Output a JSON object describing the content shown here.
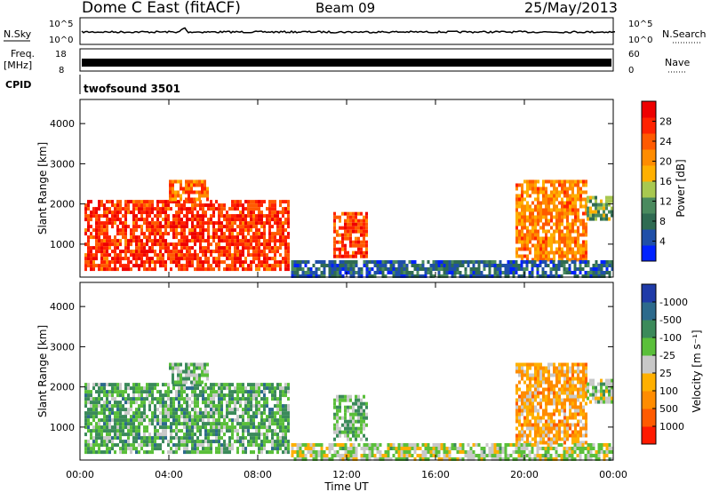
{
  "header": {
    "station": "Dome C East (fitACF)",
    "beam": "Beam 09",
    "date": "25/May/2013"
  },
  "panels": {
    "nsky_label": "N.Sky",
    "nsearch_label": "N.Search",
    "nsky_ticks": [
      "10^5",
      "10^0"
    ],
    "nsearch_ticks": [
      "10^5",
      "10^0"
    ],
    "freq_label_top": "Freq.",
    "freq_label_unit": "[MHz]",
    "freq_ticks": [
      "18",
      "8"
    ],
    "nave_label": "Nave",
    "nave_ticks": [
      "60",
      "0"
    ],
    "cpid_label": "CPID",
    "cpid_value": "twofsound 3501"
  },
  "colors": {
    "power": [
      "#0022ff",
      "#1f4fa8",
      "#2f6b52",
      "#4a8a5e",
      "#a8c850",
      "#ffb000",
      "#ff8c00",
      "#ff5a00",
      "#ff2200",
      "#ee0000"
    ],
    "velocity": [
      "#1f3ba8",
      "#2c6a8c",
      "#3b8a5a",
      "#5abf3a",
      "#c8c8c8",
      "#ffb000",
      "#ff8c00",
      "#ff5a00",
      "#ff1a00"
    ]
  },
  "chart_data": [
    {
      "type": "heatmap",
      "name": "power",
      "xlabel": "",
      "ylabel": "Slant Range [km]",
      "x_ticks": [
        "00:00",
        "04:00",
        "08:00",
        "12:00",
        "16:00",
        "20:00",
        "00:00"
      ],
      "x_hours": [
        0,
        4,
        8,
        12,
        16,
        20,
        24
      ],
      "y_ticks": [
        1000,
        2000,
        3000,
        4000
      ],
      "ylim": [
        180,
        4600
      ],
      "colorbar": {
        "label": "Power [dB]",
        "ticks": [
          "4",
          "8",
          "12",
          "16",
          "20",
          "24",
          "28"
        ],
        "range": [
          0,
          30
        ]
      },
      "echo_regions": [
        {
          "t0": 0.2,
          "t1": 9.4,
          "r0": 400,
          "r1": 2100,
          "level": 25
        },
        {
          "t0": 4.0,
          "t1": 5.8,
          "r0": 2100,
          "r1": 2600,
          "level": 22
        },
        {
          "t0": 11.4,
          "t1": 12.9,
          "r0": 700,
          "r1": 1800,
          "level": 24
        },
        {
          "t0": 19.6,
          "t1": 22.8,
          "r0": 600,
          "r1": 2600,
          "level": 20
        },
        {
          "t0": 22.8,
          "t1": 24.0,
          "r0": 1600,
          "r1": 2200,
          "level": 12
        },
        {
          "t0": 9.5,
          "t1": 24.0,
          "r0": 200,
          "r1": 600,
          "level": 6
        }
      ]
    },
    {
      "type": "heatmap",
      "name": "velocity",
      "xlabel": "Time UT",
      "ylabel": "Slant Range [km]",
      "x_ticks": [
        "00:00",
        "04:00",
        "08:00",
        "12:00",
        "16:00",
        "20:00",
        "00:00"
      ],
      "x_hours": [
        0,
        4,
        8,
        12,
        16,
        20,
        24
      ],
      "y_ticks": [
        1000,
        2000,
        3000,
        4000
      ],
      "ylim": [
        180,
        4600
      ],
      "colorbar": {
        "label": "Velocity [m s⁻¹]",
        "ticks": [
          "1000",
          "500",
          "100",
          "25",
          "-25",
          "-100",
          "-500",
          "-1000"
        ],
        "range": [
          1000,
          -1000
        ]
      },
      "echo_regions": [
        {
          "t0": 0.2,
          "t1": 9.4,
          "r0": 400,
          "r1": 2100,
          "level": -300
        },
        {
          "t0": 4.0,
          "t1": 5.8,
          "r0": 2100,
          "r1": 2600,
          "level": -200
        },
        {
          "t0": 11.4,
          "t1": 12.9,
          "r0": 700,
          "r1": 1800,
          "level": -250
        },
        {
          "t0": 19.6,
          "t1": 22.8,
          "r0": 600,
          "r1": 2600,
          "level": 300
        },
        {
          "t0": 22.8,
          "t1": 24.0,
          "r0": 1600,
          "r1": 2200,
          "level": -100
        },
        {
          "t0": 9.5,
          "t1": 24.0,
          "r0": 200,
          "r1": 600,
          "level": -40
        }
      ]
    }
  ]
}
